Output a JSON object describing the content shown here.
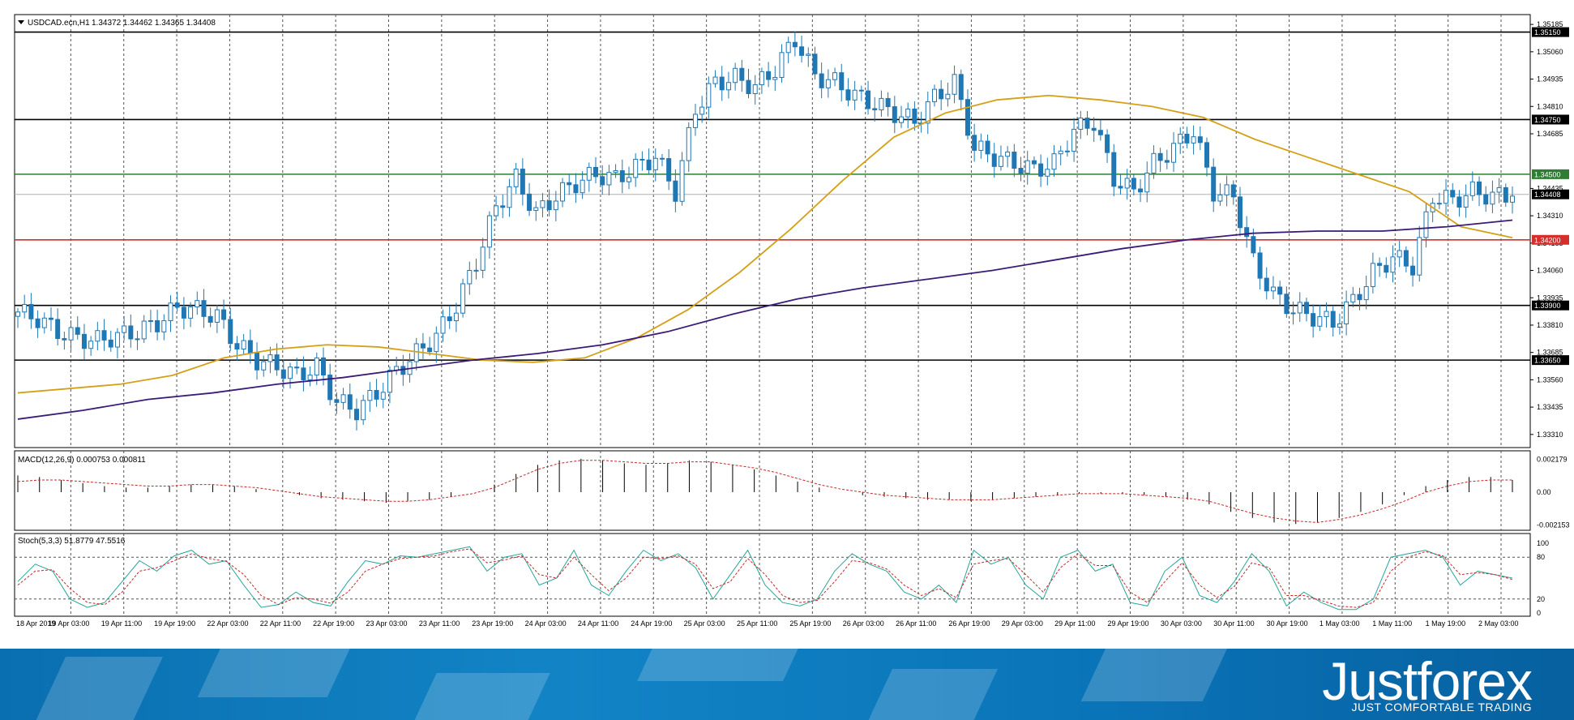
{
  "header": {
    "symbol_label": "USDCAD.ecn,H1",
    "ohlc_label": "1.34372 1.34462 1.34365 1.34408"
  },
  "colors": {
    "candle": "#1f77b4",
    "ma_fast": "#d4a017",
    "ma_slow": "#3b1a78",
    "level_black": "#000000",
    "level_green": "#2e7d32",
    "level_red": "#d32f2f",
    "macd_signal": "#c62828",
    "stoch_main": "#26a69a",
    "stoch_signal": "#c62828"
  },
  "chart_data": [
    {
      "type": "candlestick",
      "name": "price",
      "title": "USDCAD.ecn,H1",
      "ylim": [
        1.3325,
        1.3523
      ],
      "y_ticks": [
        "1.35185",
        "1.35060",
        "1.34935",
        "1.34810",
        "1.34685",
        "1.34435",
        "1.34310",
        "1.34185",
        "1.34060",
        "1.33935",
        "1.33810",
        "1.33685",
        "1.33560",
        "1.33435",
        "1.33310"
      ],
      "x_tick_labels": [
        "18 Apr 2019",
        "19 Apr 03:00",
        "19 Apr 11:00",
        "19 Apr 19:00",
        "22 Apr 03:00",
        "22 Apr 11:00",
        "22 Apr 19:00",
        "23 Apr 03:00",
        "23 Apr 11:00",
        "23 Apr 19:00",
        "24 Apr 03:00",
        "24 Apr 11:00",
        "24 Apr 19:00",
        "25 Apr 03:00",
        "25 Apr 11:00",
        "25 Apr 19:00",
        "26 Apr 03:00",
        "26 Apr 11:00",
        "26 Apr 19:00",
        "29 Apr 03:00",
        "29 Apr 11:00",
        "29 Apr 19:00",
        "30 Apr 03:00",
        "30 Apr 11:00",
        "30 Apr 19:00",
        "1 May 03:00",
        "1 May 11:00",
        "1 May 19:00",
        "2 May 03:00"
      ],
      "levels": [
        {
          "value": 1.3515,
          "label": "1.35150",
          "color": "black"
        },
        {
          "value": 1.3475,
          "label": "1.34750",
          "color": "black"
        },
        {
          "value": 1.345,
          "label": "1.34500",
          "color": "green"
        },
        {
          "value": 1.34408,
          "label": "1.34408",
          "color": "gray"
        },
        {
          "value": 1.342,
          "label": "1.34200",
          "color": "red"
        },
        {
          "value": 1.339,
          "label": "1.33900",
          "color": "black"
        },
        {
          "value": 1.3365,
          "label": "1.33650",
          "color": "black"
        }
      ],
      "close_path": [
        1.3387,
        1.3384,
        1.3378,
        1.3375,
        1.3374,
        1.3376,
        1.3378,
        1.3382,
        1.3389,
        1.3388,
        1.3385,
        1.3372,
        1.3365,
        1.3362,
        1.3358,
        1.3362,
        1.3346,
        1.3342,
        1.335,
        1.336,
        1.3368,
        1.3376,
        1.339,
        1.341,
        1.3435,
        1.3448,
        1.3432,
        1.344,
        1.3446,
        1.345,
        1.3448,
        1.3453,
        1.3458,
        1.3442,
        1.348,
        1.3492,
        1.3494,
        1.349,
        1.3498,
        1.3512,
        1.3495,
        1.3492,
        1.3486,
        1.3482,
        1.3478,
        1.3474,
        1.3485,
        1.3492,
        1.3462,
        1.3458,
        1.3455,
        1.3452,
        1.3455,
        1.347,
        1.3474,
        1.3448,
        1.3442,
        1.3455,
        1.3462,
        1.347,
        1.3442,
        1.344,
        1.341,
        1.3395,
        1.3388,
        1.3385,
        1.3382,
        1.3392,
        1.3405,
        1.3412,
        1.3408,
        1.344,
        1.3438,
        1.3442,
        1.344,
        1.344
      ],
      "series": [
        {
          "name": "",
          "kind": "ma-fast",
          "values": [
            1.335,
            1.3352,
            1.3354,
            1.3358,
            1.3366,
            1.337,
            1.3372,
            1.3371,
            1.3368,
            1.3365,
            1.3364,
            1.3366,
            1.3375,
            1.3388,
            1.3405,
            1.3425,
            1.3447,
            1.3467,
            1.3478,
            1.3484,
            1.3486,
            1.3484,
            1.3481,
            1.3476,
            1.3466,
            1.3458,
            1.345,
            1.3442,
            1.3426,
            1.3421
          ]
        },
        {
          "name": "",
          "kind": "ma-slow",
          "values": [
            1.3338,
            1.3342,
            1.3347,
            1.335,
            1.3354,
            1.3357,
            1.3361,
            1.3365,
            1.3368,
            1.3372,
            1.3378,
            1.3386,
            1.3393,
            1.3398,
            1.3402,
            1.3406,
            1.3411,
            1.3416,
            1.342,
            1.3423,
            1.3424,
            1.3424,
            1.3426,
            1.3429
          ]
        }
      ]
    },
    {
      "type": "histogram",
      "name": "macd",
      "title": "MACD(12,26,9) 0.000753 0.000811",
      "y_ticks": [
        "0.002179",
        "0.00",
        "-0.002153"
      ],
      "ylim": [
        -0.0023,
        0.0023
      ],
      "values": [
        0.0011,
        0.001,
        0.0008,
        0.0006,
        0.0004,
        0.0003,
        0.0003,
        0.0004,
        0.0005,
        0.0005,
        0.0004,
        0.0002,
        0.0,
        -0.0002,
        -0.0004,
        -0.0005,
        -0.0006,
        -0.0007,
        -0.0006,
        -0.0005,
        -0.0003,
        0.0,
        0.0005,
        0.0012,
        0.0018,
        0.0021,
        0.0022,
        0.0021,
        0.0019,
        0.0018,
        0.0019,
        0.0021,
        0.002,
        0.0018,
        0.0015,
        0.0011,
        0.0007,
        0.0003,
        0.0,
        -0.0002,
        -0.0003,
        -0.0004,
        -0.0005,
        -0.0005,
        -0.0006,
        -0.0005,
        -0.0004,
        -0.0003,
        -0.0002,
        -0.0001,
        -0.0001,
        -0.0001,
        -0.0002,
        -0.0003,
        -0.0005,
        -0.0008,
        -0.0013,
        -0.0017,
        -0.002,
        -0.0021,
        -0.002,
        -0.0017,
        -0.0013,
        -0.0008,
        -0.0002,
        0.0004,
        0.0008,
        0.001,
        0.001,
        0.0008
      ],
      "signal": [
        0.0007,
        0.0008,
        0.0008,
        0.0007,
        0.0006,
        0.0005,
        0.0004,
        0.0004,
        0.0005,
        0.0005,
        0.0004,
        0.0003,
        0.0001,
        -0.0001,
        -0.0003,
        -0.0004,
        -0.0005,
        -0.0006,
        -0.0006,
        -0.0005,
        -0.0003,
        -0.0001,
        0.0003,
        0.0009,
        0.0015,
        0.0019,
        0.0021,
        0.0021,
        0.002,
        0.0019,
        0.0019,
        0.002,
        0.002,
        0.0018,
        0.0016,
        0.0013,
        0.0009,
        0.0005,
        0.0002,
        0.0,
        -0.0002,
        -0.0003,
        -0.0004,
        -0.0005,
        -0.0005,
        -0.0005,
        -0.0004,
        -0.0003,
        -0.0002,
        -0.0001,
        -0.0001,
        -0.0001,
        -0.0002,
        -0.0003,
        -0.0004,
        -0.0006,
        -0.001,
        -0.0014,
        -0.0017,
        -0.0019,
        -0.002,
        -0.0018,
        -0.0015,
        -0.0011,
        -0.0006,
        0.0,
        0.0004,
        0.0007,
        0.0008,
        0.0008
      ]
    },
    {
      "type": "line",
      "name": "stochastic",
      "title": "Stoch(5,3,3) 51.8779 47.5516",
      "y_ticks": [
        "100",
        "80",
        "20",
        "0"
      ],
      "ylim": [
        0,
        100
      ],
      "levels": [
        80,
        20
      ],
      "series": [
        {
          "name": "",
          "kind": "main",
          "values": [
            45,
            70,
            60,
            20,
            8,
            15,
            45,
            75,
            60,
            82,
            90,
            70,
            75,
            40,
            8,
            12,
            30,
            15,
            10,
            45,
            75,
            70,
            82,
            80,
            85,
            90,
            95,
            60,
            80,
            85,
            40,
            50,
            90,
            40,
            25,
            60,
            90,
            75,
            85,
            65,
            20,
            55,
            90,
            40,
            15,
            10,
            20,
            60,
            85,
            70,
            60,
            30,
            20,
            40,
            15,
            90,
            70,
            80,
            40,
            20,
            80,
            90,
            60,
            70,
            15,
            10,
            60,
            80,
            25,
            15,
            45,
            85,
            60,
            10,
            30,
            15,
            5,
            5,
            20,
            80,
            85,
            90,
            80,
            40,
            60,
            55,
            50
          ]
        },
        {
          "name": "",
          "kind": "signal",
          "values": [
            40,
            60,
            62,
            35,
            15,
            12,
            30,
            60,
            65,
            75,
            85,
            78,
            74,
            55,
            25,
            12,
            22,
            20,
            14,
            30,
            60,
            70,
            78,
            80,
            82,
            88,
            92,
            72,
            76,
            82,
            55,
            50,
            80,
            55,
            32,
            50,
            80,
            78,
            82,
            70,
            35,
            45,
            78,
            55,
            25,
            15,
            18,
            45,
            75,
            72,
            63,
            40,
            25,
            35,
            22,
            70,
            75,
            78,
            55,
            30,
            65,
            85,
            68,
            68,
            30,
            15,
            45,
            72,
            40,
            22,
            38,
            72,
            65,
            25,
            25,
            18,
            10,
            8,
            15,
            60,
            80,
            88,
            82,
            55,
            58,
            55,
            48
          ]
        }
      ]
    }
  ],
  "banner": {
    "brand": "Justforex",
    "tagline": "JUST COMFORTABLE TRADING"
  }
}
